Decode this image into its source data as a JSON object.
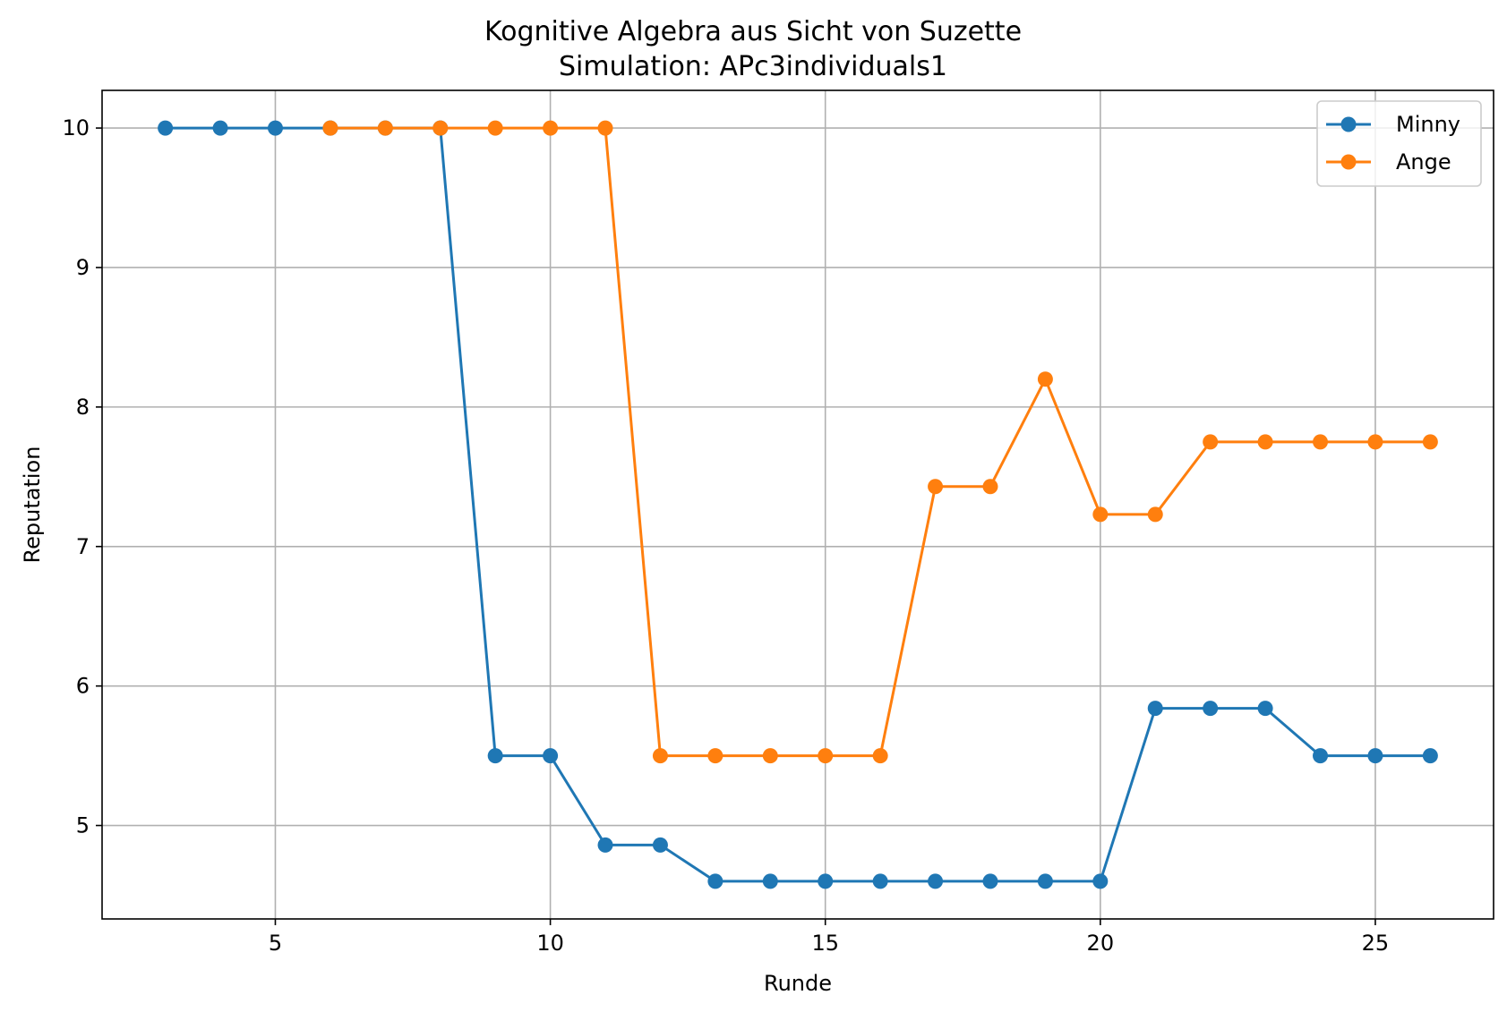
{
  "chart_data": {
    "type": "line",
    "title": "Kognitive Algebra aus Sicht von Suzette",
    "subtitle": "Simulation: APc3individuals1",
    "xlabel": "Runde",
    "ylabel": "Reputation",
    "xlim": [
      1.85,
      27.15
    ],
    "ylim": [
      4.33,
      10.27
    ],
    "xticks": [
      5,
      10,
      15,
      20,
      25
    ],
    "yticks": [
      5,
      6,
      7,
      8,
      9,
      10
    ],
    "grid": true,
    "legend_position": "top-right",
    "series": [
      {
        "name": "Minny",
        "color": "#1f77b4",
        "marker": "circle",
        "x": [
          3,
          4,
          5,
          6,
          7,
          8,
          9,
          10,
          11,
          12,
          13,
          14,
          15,
          16,
          17,
          18,
          19,
          20,
          21,
          22,
          23,
          24,
          25,
          26
        ],
        "y": [
          10,
          10,
          10,
          10,
          10,
          10,
          5.5,
          5.5,
          4.86,
          4.86,
          4.6,
          4.6,
          4.6,
          4.6,
          4.6,
          4.6,
          4.6,
          4.6,
          5.84,
          5.84,
          5.84,
          5.5,
          5.5,
          5.5
        ]
      },
      {
        "name": "Ange",
        "color": "#ff7f0e",
        "marker": "circle",
        "x": [
          6,
          7,
          8,
          9,
          10,
          11,
          12,
          13,
          14,
          15,
          16,
          17,
          18,
          19,
          20,
          21,
          22,
          23,
          24,
          25,
          26
        ],
        "y": [
          10,
          10,
          10,
          10,
          10,
          10,
          5.5,
          5.5,
          5.5,
          5.5,
          5.5,
          7.43,
          7.43,
          8.2,
          7.23,
          7.23,
          7.75,
          7.75,
          7.75,
          7.75,
          7.75
        ]
      }
    ]
  }
}
